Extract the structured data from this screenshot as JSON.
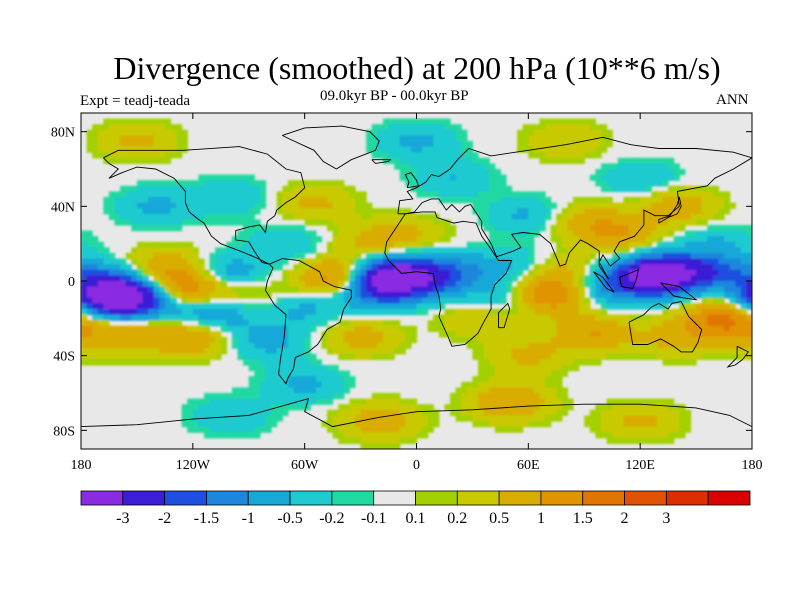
{
  "title": "Divergence (smoothed) at 200 hPa (10**6 m/s)",
  "experiment": "Expt = teadj-teada",
  "period": "09.0kyr BP - 00.0kyr BP",
  "season": "ANN",
  "map": {
    "projection": "cylindrical-equidistant",
    "lon_range": [
      -180,
      180
    ],
    "lat_range": [
      -90,
      90
    ],
    "lat_ticks": [
      {
        "value": 80,
        "label": "80N"
      },
      {
        "value": 40,
        "label": "40N"
      },
      {
        "value": 0,
        "label": "0"
      },
      {
        "value": -40,
        "label": "40S"
      },
      {
        "value": -80,
        "label": "80S"
      }
    ],
    "lon_ticks": [
      {
        "value": -180,
        "label": "180"
      },
      {
        "value": -120,
        "label": "120W"
      },
      {
        "value": -60,
        "label": "60W"
      },
      {
        "value": 0,
        "label": "0"
      },
      {
        "value": 60,
        "label": "60E"
      },
      {
        "value": 120,
        "label": "120E"
      },
      {
        "value": 180,
        "label": "180"
      }
    ],
    "background_color": "#e8e8e8",
    "coastline_color": "#000000"
  },
  "colorbar": {
    "colors": [
      "#8a2be2",
      "#3a1fd6",
      "#1f4fe0",
      "#1f86dd",
      "#17a8d8",
      "#1fcad0",
      "#20d8a2",
      "#e8e8e8",
      "#a3d000",
      "#c9c900",
      "#d9ad00",
      "#e09400",
      "#e07600",
      "#df5200",
      "#dc2e00",
      "#d90000"
    ],
    "labels": [
      "-3",
      "-2",
      "-1.5",
      "-1",
      "-0.5",
      "-0.2",
      "-0.1",
      "0.1",
      "0.2",
      "0.5",
      "1",
      "1.5",
      "2",
      "3"
    ],
    "levels": [
      -3,
      -2,
      -1.5,
      -1,
      -0.5,
      -0.2,
      -0.1,
      0.1,
      0.2,
      0.5,
      1,
      1.5,
      2,
      3
    ]
  },
  "field_features": [
    {
      "lon": -165,
      "lat": -8,
      "value": -3.2
    },
    {
      "lon": -150,
      "lat": -10,
      "value": -2.2
    },
    {
      "lon": -170,
      "lat": 2,
      "value": -0.8
    },
    {
      "lon": -125,
      "lat": -4,
      "value": 1.6
    },
    {
      "lon": -135,
      "lat": 8,
      "value": 0.8
    },
    {
      "lon": -100,
      "lat": 4,
      "value": -0.9
    },
    {
      "lon": -90,
      "lat": -5,
      "value": 0.5
    },
    {
      "lon": -110,
      "lat": -18,
      "value": -1.0
    },
    {
      "lon": -150,
      "lat": -28,
      "value": 0.7
    },
    {
      "lon": -120,
      "lat": -30,
      "value": 1.0
    },
    {
      "lon": -80,
      "lat": -32,
      "value": -0.7
    },
    {
      "lon": -40,
      "lat": 2,
      "value": 1.7
    },
    {
      "lon": -15,
      "lat": 3,
      "value": -3.0
    },
    {
      "lon": -20,
      "lat": -5,
      "value": -1.6
    },
    {
      "lon": 5,
      "lat": 2,
      "value": -1.7
    },
    {
      "lon": -60,
      "lat": -15,
      "value": -0.6
    },
    {
      "lon": -25,
      "lat": 20,
      "value": 0.6
    },
    {
      "lon": -5,
      "lat": 25,
      "value": 0.5
    },
    {
      "lon": -30,
      "lat": -30,
      "value": 0.7
    },
    {
      "lon": -70,
      "lat": 20,
      "value": -0.5
    },
    {
      "lon": -140,
      "lat": 40,
      "value": -0.6
    },
    {
      "lon": -100,
      "lat": 45,
      "value": -0.5
    },
    {
      "lon": -55,
      "lat": 42,
      "value": 0.6
    },
    {
      "lon": 25,
      "lat": 5,
      "value": -0.7
    },
    {
      "lon": 55,
      "lat": 8,
      "value": -0.6
    },
    {
      "lon": 35,
      "lat": -20,
      "value": 0.6
    },
    {
      "lon": 70,
      "lat": -8,
      "value": 1.7
    },
    {
      "lon": 75,
      "lat": 5,
      "value": 0.7
    },
    {
      "lon": 50,
      "lat": -10,
      "value": -0.8
    },
    {
      "lon": 100,
      "lat": -5,
      "value": -0.7
    },
    {
      "lon": 125,
      "lat": 2,
      "value": -3.2
    },
    {
      "lon": 140,
      "lat": 5,
      "value": -1.6
    },
    {
      "lon": 160,
      "lat": 5,
      "value": -1.0
    },
    {
      "lon": 110,
      "lat": 25,
      "value": 0.9
    },
    {
      "lon": 90,
      "lat": 32,
      "value": 0.7
    },
    {
      "lon": 60,
      "lat": 35,
      "value": -0.6
    },
    {
      "lon": 140,
      "lat": 40,
      "value": 0.8
    },
    {
      "lon": 165,
      "lat": -20,
      "value": 1.6
    },
    {
      "lon": 140,
      "lat": -30,
      "value": 0.7
    },
    {
      "lon": 95,
      "lat": -28,
      "value": 1.0
    },
    {
      "lon": 60,
      "lat": -40,
      "value": 0.6
    },
    {
      "lon": 20,
      "lat": 55,
      "value": -0.5
    },
    {
      "lon": 120,
      "lat": 55,
      "value": -0.5
    },
    {
      "lon": 0,
      "lat": 75,
      "value": -0.6
    },
    {
      "lon": 80,
      "lat": 75,
      "value": 0.5
    },
    {
      "lon": -150,
      "lat": 75,
      "value": 0.6
    },
    {
      "lon": -20,
      "lat": -75,
      "value": 0.8
    },
    {
      "lon": 120,
      "lat": -75,
      "value": 0.6
    },
    {
      "lon": -100,
      "lat": -72,
      "value": -0.5
    },
    {
      "lon": 50,
      "lat": -65,
      "value": 1.0
    },
    {
      "lon": -60,
      "lat": -55,
      "value": -0.6
    },
    {
      "lon": 160,
      "lat": 20,
      "value": -0.5
    },
    {
      "lon": -175,
      "lat": -30,
      "value": 0.6
    }
  ],
  "coastlines": [
    {
      "name": "north-america",
      "points": [
        [
          -168,
          66
        ],
        [
          -160,
          70
        ],
        [
          -140,
          70
        ],
        [
          -125,
          70
        ],
        [
          -95,
          72
        ],
        [
          -80,
          68
        ],
        [
          -70,
          60
        ],
        [
          -62,
          58
        ],
        [
          -60,
          50
        ],
        [
          -65,
          45
        ],
        [
          -70,
          42
        ],
        [
          -75,
          38
        ],
        [
          -76,
          35
        ],
        [
          -80,
          32
        ],
        [
          -81,
          26
        ],
        [
          -84,
          30
        ],
        [
          -90,
          29
        ],
        [
          -97,
          27
        ],
        [
          -97,
          22
        ],
        [
          -90,
          21
        ],
        [
          -87,
          16
        ],
        [
          -83,
          10
        ],
        [
          -79,
          9
        ],
        [
          -85,
          12
        ],
        [
          -92,
          15
        ],
        [
          -105,
          20
        ],
        [
          -110,
          24
        ],
        [
          -114,
          31
        ],
        [
          -117,
          33
        ],
        [
          -122,
          37
        ],
        [
          -124,
          42
        ],
        [
          -124,
          48
        ],
        [
          -130,
          55
        ],
        [
          -140,
          60
        ],
        [
          -150,
          61
        ],
        [
          -158,
          58
        ],
        [
          -165,
          55
        ],
        [
          -160,
          60
        ],
        [
          -165,
          63
        ],
        [
          -168,
          66
        ]
      ]
    },
    {
      "name": "greenland",
      "points": [
        [
          -72,
          78
        ],
        [
          -60,
          82
        ],
        [
          -40,
          83
        ],
        [
          -25,
          80
        ],
        [
          -20,
          75
        ],
        [
          -22,
          70
        ],
        [
          -35,
          65
        ],
        [
          -43,
          60
        ],
        [
          -50,
          64
        ],
        [
          -55,
          70
        ],
        [
          -68,
          76
        ],
        [
          -72,
          78
        ]
      ]
    },
    {
      "name": "south-america",
      "points": [
        [
          -79,
          9
        ],
        [
          -72,
          12
        ],
        [
          -63,
          11
        ],
        [
          -52,
          5
        ],
        [
          -50,
          0
        ],
        [
          -44,
          -3
        ],
        [
          -35,
          -5
        ],
        [
          -35,
          -9
        ],
        [
          -39,
          -15
        ],
        [
          -41,
          -22
        ],
        [
          -48,
          -26
        ],
        [
          -53,
          -34
        ],
        [
          -58,
          -38
        ],
        [
          -65,
          -41
        ],
        [
          -66,
          -47
        ],
        [
          -69,
          -52
        ],
        [
          -70,
          -55
        ],
        [
          -74,
          -50
        ],
        [
          -73,
          -42
        ],
        [
          -71,
          -30
        ],
        [
          -70,
          -18
        ],
        [
          -76,
          -13
        ],
        [
          -81,
          -5
        ],
        [
          -80,
          0
        ],
        [
          -77,
          7
        ],
        [
          -79,
          9
        ]
      ]
    },
    {
      "name": "europe-asia",
      "points": [
        [
          -10,
          36
        ],
        [
          -9,
          43
        ],
        [
          -2,
          44
        ],
        [
          -5,
          48
        ],
        [
          0,
          50
        ],
        [
          5,
          53
        ],
        [
          8,
          57
        ],
        [
          12,
          56
        ],
        [
          18,
          60
        ],
        [
          22,
          65
        ],
        [
          28,
          71
        ],
        [
          40,
          67
        ],
        [
          60,
          70
        ],
        [
          80,
          73
        ],
        [
          100,
          77
        ],
        [
          115,
          73
        ],
        [
          130,
          71
        ],
        [
          150,
          71
        ],
        [
          170,
          69
        ],
        [
          180,
          66
        ],
        [
          170,
          60
        ],
        [
          160,
          55
        ],
        [
          156,
          51
        ],
        [
          140,
          48
        ],
        [
          141,
          40
        ],
        [
          135,
          35
        ],
        [
          128,
          35
        ],
        [
          122,
          38
        ],
        [
          122,
          30
        ],
        [
          117,
          24
        ],
        [
          109,
          21
        ],
        [
          106,
          16
        ],
        [
          109,
          12
        ],
        [
          104,
          8
        ],
        [
          100,
          14
        ],
        [
          98,
          10
        ],
        [
          103,
          1
        ],
        [
          98,
          8
        ],
        [
          98,
          16
        ],
        [
          92,
          20
        ],
        [
          88,
          22
        ],
        [
          82,
          15
        ],
        [
          80,
          9
        ],
        [
          77,
          8
        ],
        [
          72,
          20
        ],
        [
          66,
          25
        ],
        [
          57,
          26
        ],
        [
          51,
          25
        ],
        [
          56,
          18
        ],
        [
          52,
          16
        ],
        [
          43,
          13
        ],
        [
          40,
          20
        ],
        [
          35,
          28
        ],
        [
          35,
          32
        ],
        [
          29,
          41
        ],
        [
          26,
          40
        ],
        [
          23,
          37
        ],
        [
          19,
          41
        ],
        [
          16,
          38
        ],
        [
          12,
          44
        ],
        [
          8,
          44
        ],
        [
          3,
          42
        ],
        [
          -1,
          37
        ],
        [
          -6,
          36
        ],
        [
          -10,
          36
        ]
      ]
    },
    {
      "name": "africa",
      "points": [
        [
          -6,
          36
        ],
        [
          -10,
          30
        ],
        [
          -16,
          21
        ],
        [
          -17,
          15
        ],
        [
          -15,
          11
        ],
        [
          -8,
          4
        ],
        [
          0,
          5
        ],
        [
          9,
          4
        ],
        [
          10,
          -2
        ],
        [
          12,
          -8
        ],
        [
          13,
          -15
        ],
        [
          12,
          -19
        ],
        [
          17,
          -30
        ],
        [
          19,
          -35
        ],
        [
          26,
          -34
        ],
        [
          33,
          -28
        ],
        [
          35,
          -24
        ],
        [
          40,
          -15
        ],
        [
          40,
          -8
        ],
        [
          42,
          -2
        ],
        [
          48,
          4
        ],
        [
          51,
          11
        ],
        [
          44,
          11
        ],
        [
          40,
          17
        ],
        [
          35,
          24
        ],
        [
          32,
          31
        ],
        [
          25,
          32
        ],
        [
          20,
          31
        ],
        [
          11,
          34
        ],
        [
          10,
          37
        ],
        [
          3,
          37
        ],
        [
          -6,
          36
        ]
      ]
    },
    {
      "name": "australia",
      "points": [
        [
          114,
          -22
        ],
        [
          116,
          -34
        ],
        [
          124,
          -34
        ],
        [
          131,
          -31
        ],
        [
          138,
          -35
        ],
        [
          142,
          -38
        ],
        [
          148,
          -38
        ],
        [
          151,
          -33
        ],
        [
          153,
          -26
        ],
        [
          146,
          -19
        ],
        [
          142,
          -11
        ],
        [
          137,
          -12
        ],
        [
          135,
          -15
        ],
        [
          130,
          -12
        ],
        [
          126,
          -14
        ],
        [
          122,
          -18
        ],
        [
          114,
          -22
        ]
      ]
    },
    {
      "name": "antarctica",
      "points": [
        [
          -180,
          -78
        ],
        [
          -150,
          -77
        ],
        [
          -120,
          -74
        ],
        [
          -90,
          -72
        ],
        [
          -65,
          -65
        ],
        [
          -58,
          -63
        ],
        [
          -60,
          -70
        ],
        [
          -45,
          -78
        ],
        [
          -20,
          -73
        ],
        [
          0,
          -70
        ],
        [
          30,
          -69
        ],
        [
          60,
          -67
        ],
        [
          90,
          -66
        ],
        [
          120,
          -66
        ],
        [
          150,
          -68
        ],
        [
          168,
          -72
        ],
        [
          180,
          -78
        ]
      ]
    },
    {
      "name": "madagascar",
      "points": [
        [
          44,
          -25
        ],
        [
          47,
          -25
        ],
        [
          50,
          -15
        ],
        [
          49,
          -12
        ],
        [
          44,
          -17
        ],
        [
          44,
          -25
        ]
      ]
    },
    {
      "name": "britain",
      "points": [
        [
          -5,
          50
        ],
        [
          1,
          51
        ],
        [
          0,
          54
        ],
        [
          -3,
          58
        ],
        [
          -6,
          57
        ],
        [
          -4,
          53
        ],
        [
          -5,
          50
        ]
      ]
    },
    {
      "name": "japan",
      "points": [
        [
          130,
          31
        ],
        [
          135,
          34
        ],
        [
          140,
          36
        ],
        [
          142,
          40
        ],
        [
          141,
          45
        ],
        [
          140,
          41
        ],
        [
          136,
          35
        ],
        [
          130,
          33
        ],
        [
          130,
          31
        ]
      ]
    },
    {
      "name": "borneo",
      "points": [
        [
          109,
          2
        ],
        [
          114,
          4
        ],
        [
          119,
          6
        ],
        [
          118,
          1
        ],
        [
          116,
          -4
        ],
        [
          110,
          -3
        ],
        [
          109,
          2
        ]
      ]
    },
    {
      "name": "sumatra",
      "points": [
        [
          95,
          5
        ],
        [
          100,
          2
        ],
        [
          106,
          -6
        ],
        [
          102,
          -4
        ],
        [
          95,
          5
        ]
      ]
    },
    {
      "name": "new-guinea",
      "points": [
        [
          131,
          -1
        ],
        [
          141,
          -3
        ],
        [
          150,
          -10
        ],
        [
          143,
          -9
        ],
        [
          138,
          -8
        ],
        [
          131,
          -1
        ]
      ]
    },
    {
      "name": "new-zealand",
      "points": [
        [
          172,
          -35
        ],
        [
          178,
          -38
        ],
        [
          175,
          -42
        ],
        [
          171,
          -45
        ],
        [
          167,
          -46
        ],
        [
          172,
          -41
        ],
        [
          172,
          -35
        ]
      ]
    },
    {
      "name": "iceland",
      "points": [
        [
          -24,
          65
        ],
        [
          -14,
          65
        ],
        [
          -15,
          64
        ],
        [
          -22,
          63
        ],
        [
          -24,
          65
        ]
      ]
    }
  ]
}
